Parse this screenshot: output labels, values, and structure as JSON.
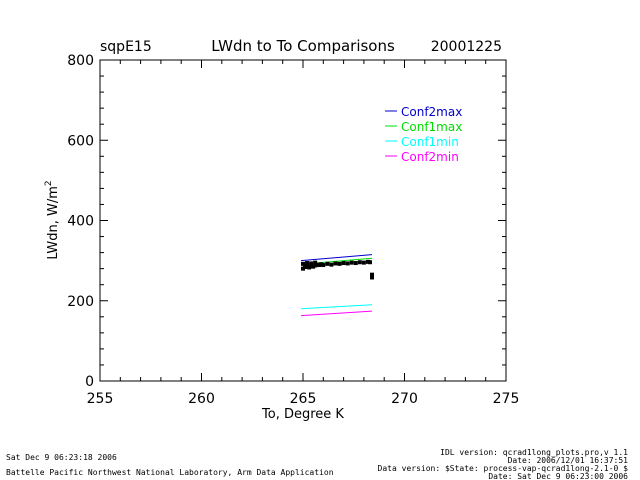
{
  "header": {
    "site": "sqpE15",
    "title": "LWdn to To Comparisons",
    "date": "20001225"
  },
  "chart_data": {
    "type": "scatter",
    "title": "LWdn to To Comparisons",
    "xlabel": "To, Degree K",
    "ylabel": "LWdn, W/m",
    "ylabel_sup": "2",
    "xlim": [
      255,
      275
    ],
    "ylim": [
      0,
      800
    ],
    "x_ticks": [
      255,
      260,
      265,
      270,
      275
    ],
    "y_ticks": [
      0,
      200,
      400,
      600,
      800
    ],
    "grid": false,
    "legend_position": "top-right",
    "lines": [
      {
        "name": "Conf2max",
        "color": "#0000cc",
        "x": [
          264.9,
          268.4
        ],
        "y": [
          300,
          315
        ]
      },
      {
        "name": "Conf1max",
        "color": "#00dd00",
        "x": [
          264.9,
          268.4
        ],
        "y": [
          291,
          306
        ]
      },
      {
        "name": "Conf1min",
        "color": "#00ffff",
        "x": [
          264.9,
          268.4
        ],
        "y": [
          180,
          190
        ]
      },
      {
        "name": "Conf2min",
        "color": "#ff00ff",
        "x": [
          264.9,
          268.4
        ],
        "y": [
          163,
          174
        ]
      }
    ],
    "scatter": {
      "color": "#000000",
      "points": [
        [
          265.0,
          280
        ],
        [
          265.1,
          284
        ],
        [
          265.2,
          286
        ],
        [
          265.3,
          283
        ],
        [
          265.4,
          287
        ],
        [
          265.5,
          285
        ],
        [
          265.6,
          288
        ],
        [
          265.7,
          290
        ],
        [
          265.8,
          289
        ],
        [
          265.9,
          291
        ],
        [
          266.0,
          289
        ],
        [
          266.2,
          292
        ],
        [
          266.4,
          290
        ],
        [
          266.6,
          293
        ],
        [
          266.8,
          292
        ],
        [
          267.0,
          294
        ],
        [
          267.2,
          293
        ],
        [
          267.4,
          295
        ],
        [
          267.6,
          294
        ],
        [
          267.8,
          296
        ],
        [
          268.0,
          295
        ],
        [
          268.2,
          297
        ],
        [
          268.3,
          296
        ],
        [
          268.4,
          265
        ],
        [
          268.4,
          258
        ],
        [
          265.0,
          292
        ],
        [
          265.2,
          294
        ],
        [
          265.4,
          293
        ],
        [
          265.6,
          295
        ]
      ]
    }
  },
  "footer": {
    "run_date": "Sat Dec  9 06:23:18 2006",
    "lab": "Battelle Pacific Northwest National Laboratory, Arm Data Application",
    "idl_version": "IDL version: qcrad1long_plots.pro,v 1.1",
    "idl_date": "Date: 2006/12/01 16:37:51",
    "data_version": "Data version: $State: process-vap-qcrad1long-2.1-0 $",
    "data_date": "Date: Sat Dec  9 06:23:00 2006"
  }
}
